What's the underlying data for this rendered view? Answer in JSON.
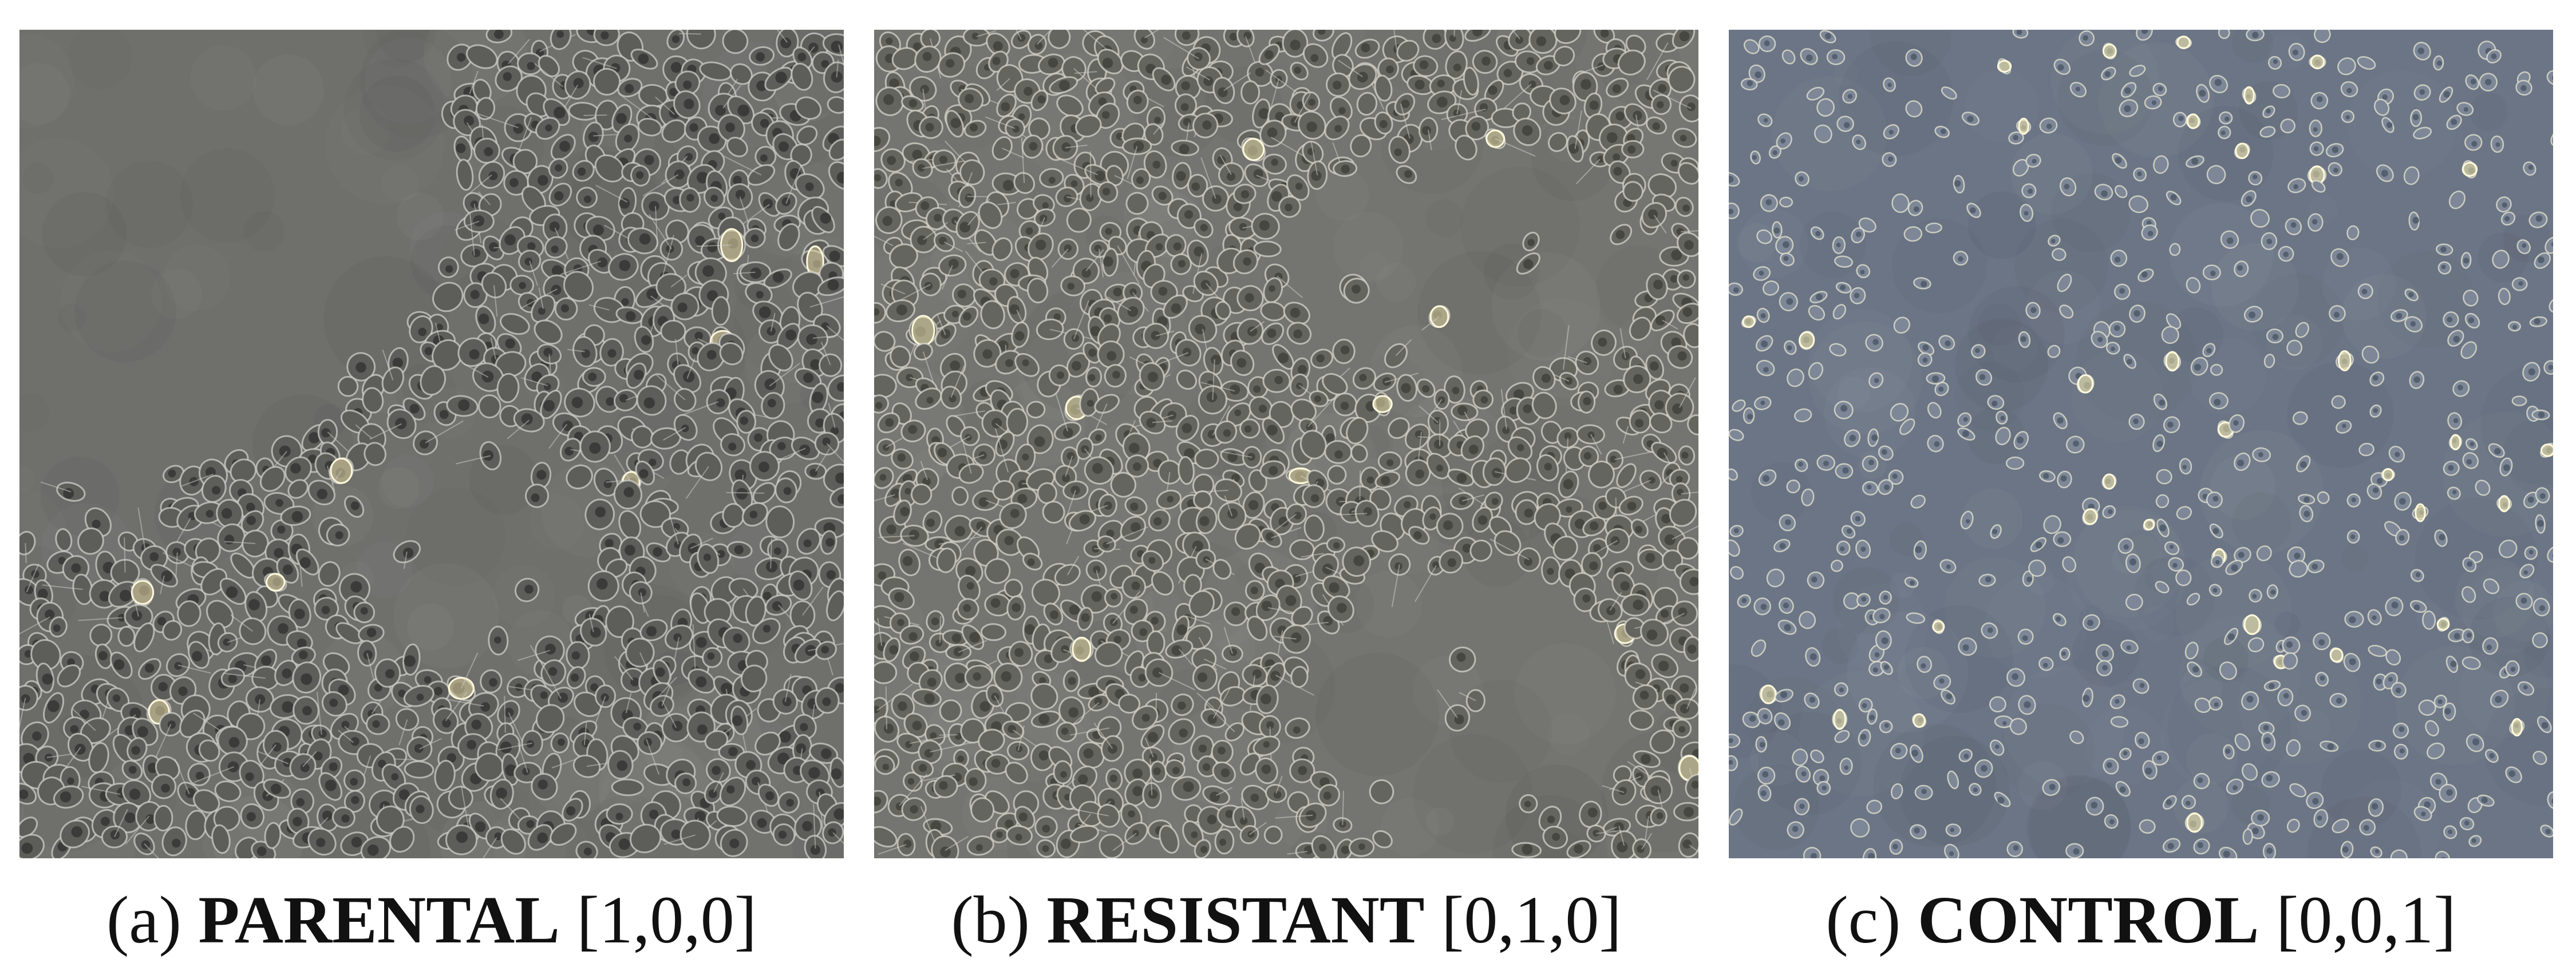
{
  "panels": [
    {
      "letter": "(a)",
      "name": "PARENTAL",
      "vector": "[1,0,0]",
      "background": "#6f6f6c",
      "cell_fill": "#5d5d5a",
      "cell_edge": "#cfcfc8",
      "cell_nucleus": "#2d2d2b",
      "highlight": "#e6d9a8"
    },
    {
      "letter": "(b)",
      "name": "RESISTANT",
      "vector": "[0,1,0]",
      "background": "#747470",
      "cell_fill": "#65655f",
      "cell_edge": "#d4d4cb",
      "cell_nucleus": "#3a3a36",
      "highlight": "#e8dcaa"
    },
    {
      "letter": "(c)",
      "name": "CONTROL",
      "vector": "[0,0,1]",
      "background": "#6b7585",
      "cell_fill": "#7d8797",
      "cell_edge": "#e7e6d2",
      "cell_nucleus": "#45505e",
      "highlight": "#f1e6a6"
    }
  ]
}
